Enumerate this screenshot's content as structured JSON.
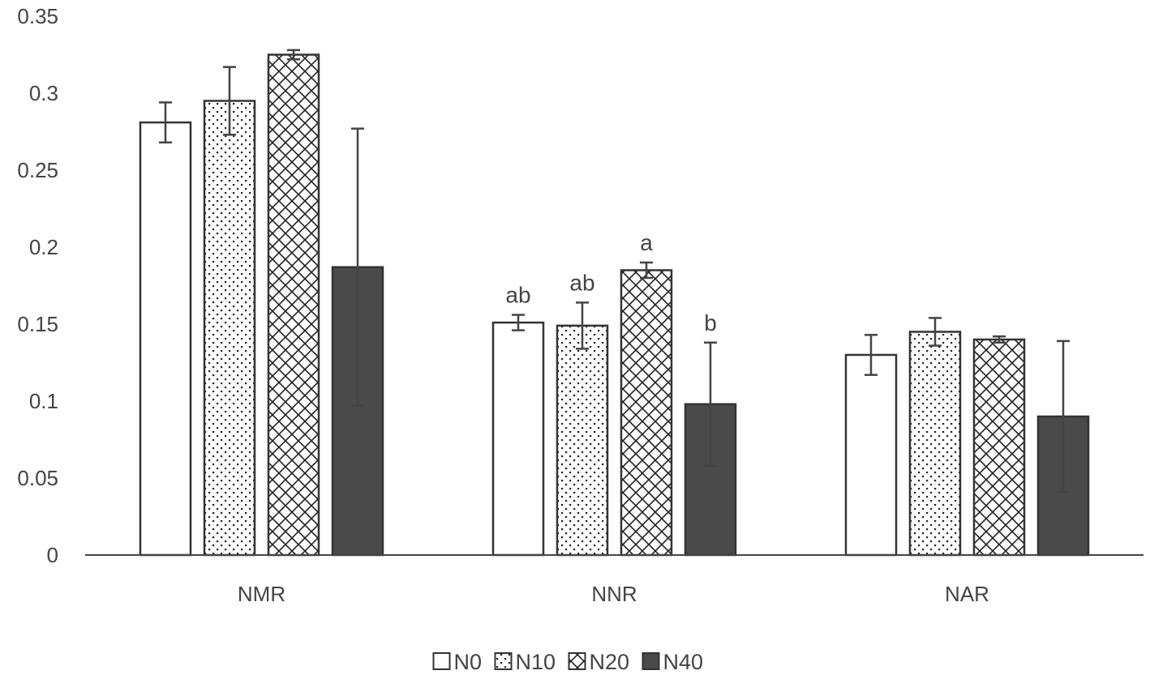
{
  "chart_data": {
    "type": "bar",
    "title": "",
    "xlabel": "",
    "ylabel": "",
    "ylim": [
      0,
      0.35
    ],
    "yticks": [
      0,
      0.05,
      0.1,
      0.15,
      0.2,
      0.25,
      0.3,
      0.35
    ],
    "ytick_labels": [
      "0",
      "0.05",
      "0.1",
      "0.15",
      "0.2",
      "0.25",
      "0.3",
      "0.35"
    ],
    "grid": false,
    "legend_position": "bottom",
    "categories": [
      "NMR",
      "NNR",
      "NAR"
    ],
    "series": [
      {
        "name": "N0",
        "pattern": "plain",
        "fill": "#ffffff",
        "values": [
          0.281,
          0.151,
          0.13
        ],
        "errors": [
          0.013,
          0.005,
          0.013
        ]
      },
      {
        "name": "N10",
        "pattern": "dots",
        "fill": "#ffffff",
        "values": [
          0.295,
          0.149,
          0.145
        ],
        "errors": [
          0.022,
          0.015,
          0.009
        ]
      },
      {
        "name": "N20",
        "pattern": "crosshatch",
        "fill": "#ffffff",
        "values": [
          0.325,
          0.185,
          0.14
        ],
        "errors": [
          0.003,
          0.005,
          0.002
        ]
      },
      {
        "name": "N40",
        "pattern": "solid",
        "fill": "#4a4a4a",
        "values": [
          0.187,
          0.098,
          0.09
        ],
        "errors": [
          0.09,
          0.04,
          0.049
        ]
      }
    ],
    "annotations": [
      {
        "category": "NNR",
        "series": "N0",
        "text": "ab"
      },
      {
        "category": "NNR",
        "series": "N10",
        "text": "ab"
      },
      {
        "category": "NNR",
        "series": "N20",
        "text": "a"
      },
      {
        "category": "NNR",
        "series": "N40",
        "text": "b"
      }
    ]
  }
}
